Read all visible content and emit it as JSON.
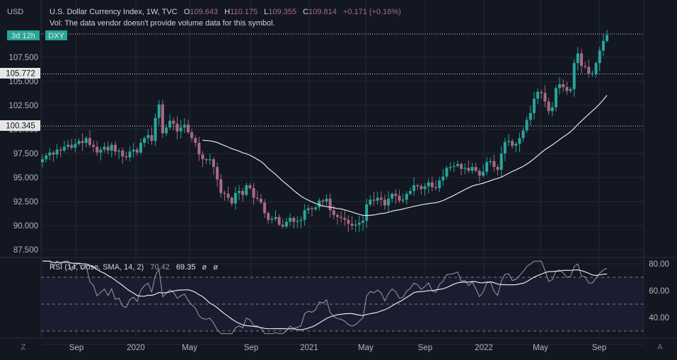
{
  "colors": {
    "background": "#131722",
    "grid": "#242833",
    "axis_text": "#b2b5be",
    "up": "#26a69a",
    "down": "#a86a84",
    "sma_line": "#e6e6e6",
    "rsi_line": "#9a9ca3",
    "rsi_sma": "#e6e6e6",
    "label_bg": "#e6e6e6",
    "countdown_bg": "#26a69a"
  },
  "header": {
    "currency": "USD",
    "title": "U.S. Dollar Currency Index, 1W, TVC",
    "ohlc": [
      {
        "prefix": "O",
        "value": "109.643"
      },
      {
        "prefix": "H",
        "value": "110.175"
      },
      {
        "prefix": "L",
        "value": "109.355"
      },
      {
        "prefix": "C",
        "value": "109.814"
      }
    ],
    "change": "+0.171 (+0.16%)",
    "vol_note": "Vol: The data vendor doesn't provide volume data for this symbol.",
    "countdown": "3d 12h",
    "symbol": "DXY"
  },
  "rsi_legend": {
    "label": "RSI (14, close, SMA, 14, 2)",
    "v1": "70.42",
    "v2": "69.35",
    "z1": "ø",
    "z2": "ø"
  },
  "price_labels": [
    "105.772",
    "100.345"
  ],
  "footer": {
    "left_btn": "Z",
    "right_btn": "A"
  },
  "chart_data": {
    "type": "candlestick",
    "title": "U.S. Dollar Currency Index, 1W, TVC",
    "y_axis": {
      "ticks": [
        "87.500",
        "90.000",
        "92.500",
        "95.000",
        "97.500",
        "100.000",
        "102.500",
        "105.000",
        "107.500"
      ],
      "range": [
        87.5,
        110.6
      ]
    },
    "x_axis": {
      "ticks": [
        "Sep",
        "2020",
        "May",
        "Sep",
        "2021",
        "May",
        "Sep",
        "2022",
        "May",
        "Sep"
      ]
    },
    "close_series": [
      96.9,
      97.3,
      97.6,
      97.4,
      97.9,
      97.8,
      98.2,
      98.4,
      98.1,
      98.5,
      98.8,
      98.6,
      99.1,
      98.4,
      98.2,
      97.6,
      97.9,
      98.2,
      97.8,
      98.4,
      97.7,
      97.8,
      97.2,
      97.1,
      97.7,
      97.9,
      97.6,
      98.6,
      99.1,
      99.4,
      98.8,
      101.2,
      102.6,
      99.6,
      100.2,
      100.9,
      100.6,
      99.8,
      100.2,
      100.5,
      99.7,
      99.1,
      98.6,
      97.4,
      96.9,
      96.8,
      96.9,
      96.1,
      94.8,
      93.4,
      93.3,
      92.9,
      92.3,
      93.4,
      93.6,
      93.2,
      94.2,
      93.9,
      92.9,
      92.8,
      92.4,
      91.3,
      90.6,
      90.7,
      90.9,
      90.1,
      89.9,
      90.4,
      90.8,
      90.4,
      90.5,
      90.6,
      91.6,
      91.8,
      91.7,
      91.9,
      92.6,
      92.5,
      92.8,
      91.6,
      91.1,
      90.9,
      90.8,
      90.6,
      90.2,
      90.0,
      90.1,
      90.3,
      90.5,
      92.2,
      92.7,
      92.6,
      92.9,
      92.7,
      92.1,
      92.8,
      93.3,
      93.1,
      92.6,
      92.7,
      93.3,
      93.6,
      94.2,
      94.1,
      93.8,
      94.1,
      94.5,
      94.0,
      93.9,
      94.7,
      95.1,
      96.0,
      96.1,
      96.2,
      96.4,
      95.9,
      96.0,
      95.7,
      96.1,
      95.7,
      95.2,
      95.6,
      96.6,
      96.7,
      96.1,
      95.8,
      97.5,
      98.7,
      98.8,
      98.3,
      98.5,
      99.1,
      99.9,
      101.0,
      101.7,
      103.2,
      103.9,
      103.8,
      102.9,
      101.9,
      102.3,
      104.3,
      104.7,
      104.4,
      104.0,
      104.2,
      106.9,
      107.9,
      106.6,
      106.5,
      105.8,
      105.8,
      106.9,
      108.2,
      109.2,
      109.8
    ]
  }
}
